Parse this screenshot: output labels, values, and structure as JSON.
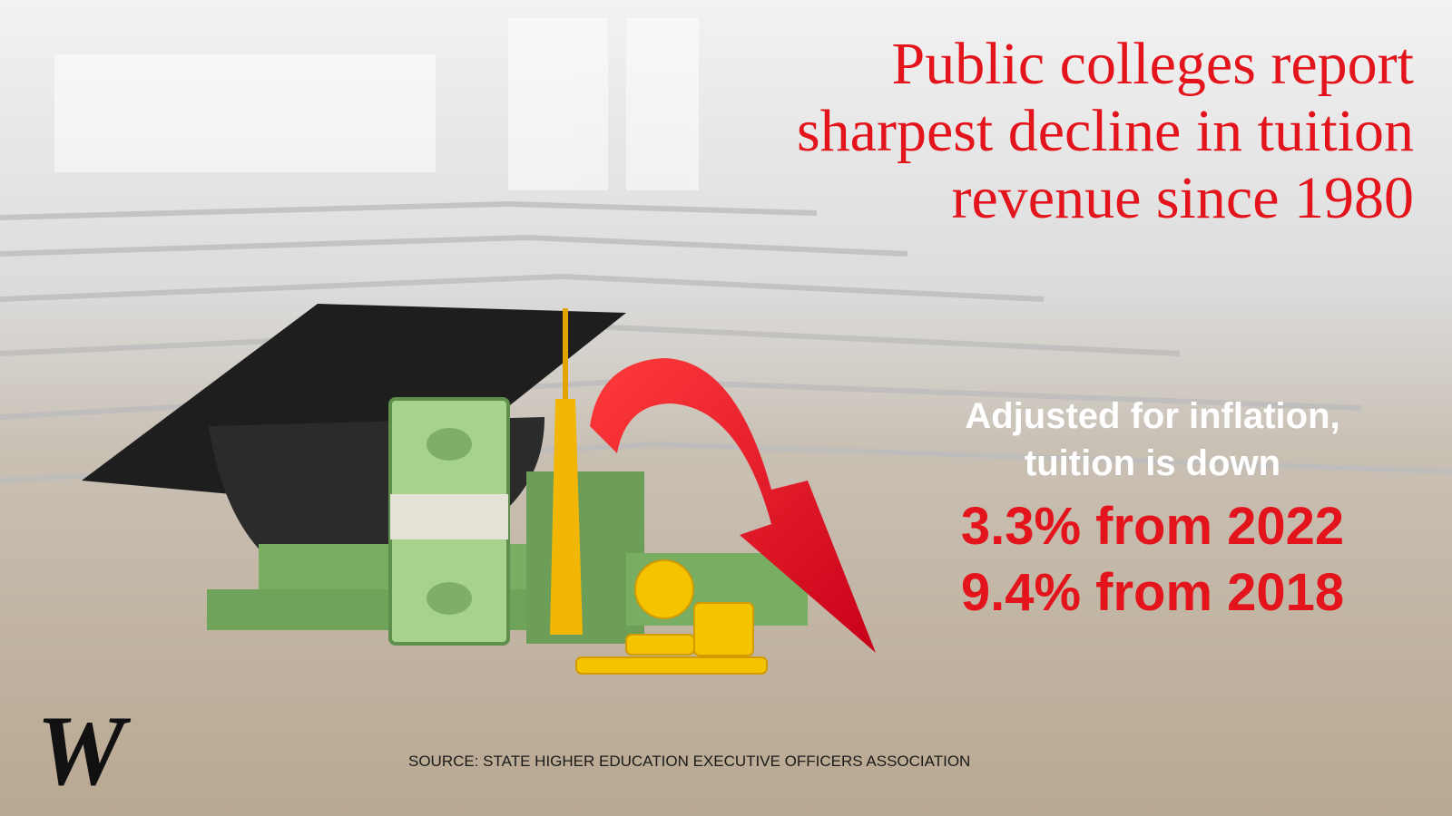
{
  "header": {
    "title_lines": [
      "Public colleges report",
      "sharpest decline in tuition",
      "revenue since 1980"
    ]
  },
  "summary": {
    "intro_lines": [
      "Adjusted for inflation,",
      "tuition is down"
    ],
    "stats": [
      "3.3% from 2022",
      "9.4% from 2018"
    ]
  },
  "footer": {
    "logo": "W",
    "source": "SOURCE: STATE HIGHER EDUCATION EXECUTIVE OFFICERS ASSOCIATION"
  }
}
